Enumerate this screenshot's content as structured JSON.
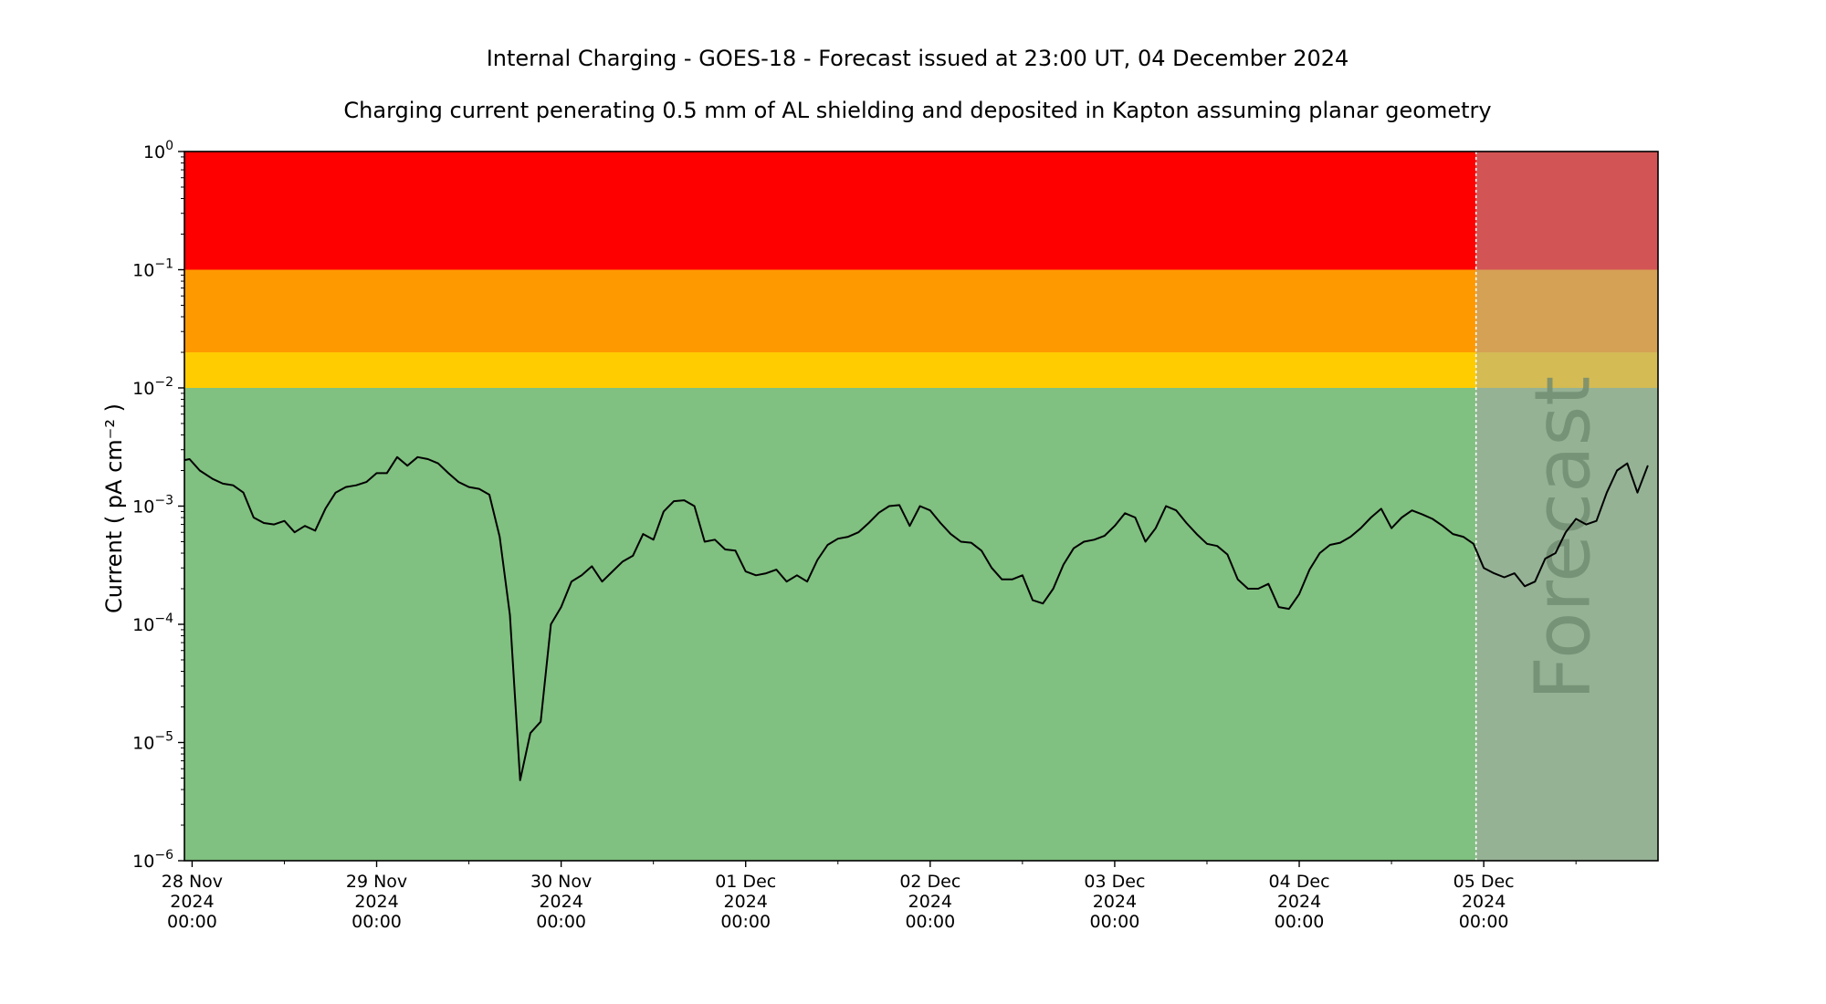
{
  "chart_data": {
    "type": "line",
    "title": "Internal Charging - GOES-18 - Forecast issued at 23:00 UT, 04 December 2024",
    "subtitle": "Charging current penerating 0.5 mm of AL shielding and deposited in Kapton assuming planar geometry",
    "ylabel": "Current ( pA cm⁻² )",
    "xlabel": "",
    "y_scale": "log",
    "ylim": [
      1e-06,
      1
    ],
    "xlim": [
      "2024-11-27T23:00",
      "2024-12-05T22:40"
    ],
    "forecast_start": "2024-12-04T23:00",
    "forecast_label": "Forecast",
    "grid": false,
    "x_ticks": [
      {
        "line1": "28 Nov",
        "line2": "2024",
        "line3": "00:00",
        "value": "2024-11-28T00:00"
      },
      {
        "line1": "29 Nov",
        "line2": "2024",
        "line3": "00:00",
        "value": "2024-11-29T00:00"
      },
      {
        "line1": "30 Nov",
        "line2": "2024",
        "line3": "00:00",
        "value": "2024-11-30T00:00"
      },
      {
        "line1": "01 Dec",
        "line2": "2024",
        "line3": "00:00",
        "value": "2024-12-01T00:00"
      },
      {
        "line1": "02 Dec",
        "line2": "2024",
        "line3": "00:00",
        "value": "2024-12-02T00:00"
      },
      {
        "line1": "03 Dec",
        "line2": "2024",
        "line3": "00:00",
        "value": "2024-12-03T00:00"
      },
      {
        "line1": "04 Dec",
        "line2": "2024",
        "line3": "00:00",
        "value": "2024-12-04T00:00"
      },
      {
        "line1": "05 Dec",
        "line2": "2024",
        "line3": "00:00",
        "value": "2024-12-05T00:00"
      }
    ],
    "y_ticks": [
      {
        "base": "10",
        "exp": "0",
        "value": 1
      },
      {
        "base": "10",
        "exp": "−1",
        "value": 0.1
      },
      {
        "base": "10",
        "exp": "−2",
        "value": 0.01
      },
      {
        "base": "10",
        "exp": "−3",
        "value": 0.001
      },
      {
        "base": "10",
        "exp": "−4",
        "value": 0.0001
      },
      {
        "base": "10",
        "exp": "−5",
        "value": 1e-05
      },
      {
        "base": "10",
        "exp": "−6",
        "value": 1e-06
      }
    ],
    "bands": [
      {
        "from": 0.1,
        "to": 1,
        "color": "#ff0000",
        "forecast_color": "#d35454"
      },
      {
        "from": 0.02,
        "to": 0.1,
        "color": "#ff9900",
        "forecast_color": "#d5a155"
      },
      {
        "from": 0.01,
        "to": 0.02,
        "color": "#ffcc00",
        "forecast_color": "#d4bb54"
      },
      {
        "from": 1e-06,
        "to": 0.01,
        "color": "#80c080",
        "forecast_color": "#95b295"
      }
    ],
    "series": [
      {
        "color": "#000000",
        "points": [
          [
            "2024-11-27T23:00",
            0.00245
          ],
          [
            "2024-11-27T23:40",
            0.0025
          ],
          [
            "2024-11-28T01:00",
            0.002
          ],
          [
            "2024-11-28T02:40",
            0.0017
          ],
          [
            "2024-11-28T04:00",
            0.00155
          ],
          [
            "2024-11-28T05:20",
            0.0015
          ],
          [
            "2024-11-28T06:40",
            0.0013
          ],
          [
            "2024-11-28T08:00",
            0.0008
          ],
          [
            "2024-11-28T09:20",
            0.00072
          ],
          [
            "2024-11-28T10:40",
            0.0007
          ],
          [
            "2024-11-28T12:00",
            0.00075
          ],
          [
            "2024-11-28T13:20",
            0.0006
          ],
          [
            "2024-11-28T14:40",
            0.00068
          ],
          [
            "2024-11-28T16:00",
            0.00062
          ],
          [
            "2024-11-28T17:20",
            0.00095
          ],
          [
            "2024-11-28T18:40",
            0.0013
          ],
          [
            "2024-11-28T20:00",
            0.00145
          ],
          [
            "2024-11-28T21:20",
            0.0015
          ],
          [
            "2024-11-28T22:40",
            0.0016
          ],
          [
            "2024-11-29T00:00",
            0.0019
          ],
          [
            "2024-11-29T01:20",
            0.0019
          ],
          [
            "2024-11-29T02:40",
            0.0026
          ],
          [
            "2024-11-29T04:00",
            0.0022
          ],
          [
            "2024-11-29T05:20",
            0.0026
          ],
          [
            "2024-11-29T06:40",
            0.0025
          ],
          [
            "2024-11-29T08:00",
            0.0023
          ],
          [
            "2024-11-29T09:20",
            0.0019
          ],
          [
            "2024-11-29T10:40",
            0.0016
          ],
          [
            "2024-11-29T12:00",
            0.00145
          ],
          [
            "2024-11-29T13:20",
            0.0014
          ],
          [
            "2024-11-29T14:40",
            0.00125
          ],
          [
            "2024-11-29T16:00",
            0.00055
          ],
          [
            "2024-11-29T17:20",
            0.00012
          ],
          [
            "2024-11-29T18:40",
            4.8e-06
          ],
          [
            "2024-11-29T20:00",
            1.2e-05
          ],
          [
            "2024-11-29T21:20",
            1.5e-05
          ],
          [
            "2024-11-29T22:40",
            0.0001
          ],
          [
            "2024-11-30T00:00",
            0.00014
          ],
          [
            "2024-11-30T01:20",
            0.00023
          ],
          [
            "2024-11-30T02:40",
            0.00026
          ],
          [
            "2024-11-30T04:00",
            0.00031
          ],
          [
            "2024-11-30T05:20",
            0.00023
          ],
          [
            "2024-11-30T06:40",
            0.00028
          ],
          [
            "2024-11-30T08:00",
            0.00034
          ],
          [
            "2024-11-30T09:20",
            0.00038
          ],
          [
            "2024-11-30T10:40",
            0.00058
          ],
          [
            "2024-11-30T12:00",
            0.00052
          ],
          [
            "2024-11-30T13:20",
            0.0009
          ],
          [
            "2024-11-30T14:40",
            0.0011
          ],
          [
            "2024-11-30T16:00",
            0.00112
          ],
          [
            "2024-11-30T17:20",
            0.001
          ],
          [
            "2024-11-30T18:40",
            0.0005
          ],
          [
            "2024-11-30T20:00",
            0.00052
          ],
          [
            "2024-11-30T21:20",
            0.00043
          ],
          [
            "2024-11-30T22:40",
            0.00042
          ],
          [
            "2024-12-01T00:00",
            0.00028
          ],
          [
            "2024-12-01T01:20",
            0.00026
          ],
          [
            "2024-12-01T02:40",
            0.00027
          ],
          [
            "2024-12-01T04:00",
            0.00029
          ],
          [
            "2024-12-01T05:20",
            0.00023
          ],
          [
            "2024-12-01T06:40",
            0.00026
          ],
          [
            "2024-12-01T08:00",
            0.00023
          ],
          [
            "2024-12-01T09:20",
            0.00035
          ],
          [
            "2024-12-01T10:40",
            0.00047
          ],
          [
            "2024-12-01T12:00",
            0.00053
          ],
          [
            "2024-12-01T13:20",
            0.00055
          ],
          [
            "2024-12-01T14:40",
            0.0006
          ],
          [
            "2024-12-01T16:00",
            0.00072
          ],
          [
            "2024-12-01T17:20",
            0.00088
          ],
          [
            "2024-12-01T18:40",
            0.001
          ],
          [
            "2024-12-01T20:00",
            0.00102
          ],
          [
            "2024-12-01T21:20",
            0.00068
          ],
          [
            "2024-12-01T22:40",
            0.001
          ],
          [
            "2024-12-02T00:00",
            0.00092
          ],
          [
            "2024-12-02T01:20",
            0.00072
          ],
          [
            "2024-12-02T02:40",
            0.00058
          ],
          [
            "2024-12-02T04:00",
            0.0005
          ],
          [
            "2024-12-02T05:20",
            0.00049
          ],
          [
            "2024-12-02T06:40",
            0.00042
          ],
          [
            "2024-12-02T08:00",
            0.0003
          ],
          [
            "2024-12-02T09:20",
            0.00024
          ],
          [
            "2024-12-02T10:40",
            0.00024
          ],
          [
            "2024-12-02T12:00",
            0.00026
          ],
          [
            "2024-12-02T13:20",
            0.00016
          ],
          [
            "2024-12-02T14:40",
            0.00015
          ],
          [
            "2024-12-02T16:00",
            0.0002
          ],
          [
            "2024-12-02T17:20",
            0.00032
          ],
          [
            "2024-12-02T18:40",
            0.00044
          ],
          [
            "2024-12-02T20:00",
            0.0005
          ],
          [
            "2024-12-02T21:20",
            0.00052
          ],
          [
            "2024-12-02T22:40",
            0.00056
          ],
          [
            "2024-12-03T00:00",
            0.00068
          ],
          [
            "2024-12-03T01:20",
            0.00087
          ],
          [
            "2024-12-03T02:40",
            0.0008
          ],
          [
            "2024-12-03T04:00",
            0.0005
          ],
          [
            "2024-12-03T05:20",
            0.00065
          ],
          [
            "2024-12-03T06:40",
            0.001
          ],
          [
            "2024-12-03T08:00",
            0.00092
          ],
          [
            "2024-12-03T09:20",
            0.00072
          ],
          [
            "2024-12-03T10:40",
            0.00058
          ],
          [
            "2024-12-03T12:00",
            0.00048
          ],
          [
            "2024-12-03T13:20",
            0.00046
          ],
          [
            "2024-12-03T14:40",
            0.00039
          ],
          [
            "2024-12-03T16:00",
            0.00024
          ],
          [
            "2024-12-03T17:20",
            0.0002
          ],
          [
            "2024-12-03T18:40",
            0.0002
          ],
          [
            "2024-12-03T20:00",
            0.00022
          ],
          [
            "2024-12-03T21:20",
            0.00014
          ],
          [
            "2024-12-03T22:40",
            0.000135
          ],
          [
            "2024-12-04T00:00",
            0.00018
          ],
          [
            "2024-12-04T01:20",
            0.00029
          ],
          [
            "2024-12-04T02:40",
            0.0004
          ],
          [
            "2024-12-04T04:00",
            0.00047
          ],
          [
            "2024-12-04T05:20",
            0.00049
          ],
          [
            "2024-12-04T06:40",
            0.00055
          ],
          [
            "2024-12-04T08:00",
            0.00065
          ],
          [
            "2024-12-04T09:20",
            0.0008
          ],
          [
            "2024-12-04T10:40",
            0.00095
          ],
          [
            "2024-12-04T12:00",
            0.00065
          ],
          [
            "2024-12-04T13:20",
            0.0008
          ],
          [
            "2024-12-04T14:40",
            0.00092
          ],
          [
            "2024-12-04T16:00",
            0.00085
          ],
          [
            "2024-12-04T17:20",
            0.00078
          ],
          [
            "2024-12-04T18:40",
            0.00068
          ],
          [
            "2024-12-04T20:00",
            0.00058
          ],
          [
            "2024-12-04T21:20",
            0.00055
          ],
          [
            "2024-12-04T22:40",
            0.00048
          ],
          [
            "2024-12-05T00:00",
            0.0003
          ],
          [
            "2024-12-05T01:20",
            0.00027
          ],
          [
            "2024-12-05T02:40",
            0.00025
          ],
          [
            "2024-12-05T04:00",
            0.00027
          ],
          [
            "2024-12-05T05:20",
            0.00021
          ],
          [
            "2024-12-05T06:40",
            0.00023
          ],
          [
            "2024-12-05T08:00",
            0.00036
          ],
          [
            "2024-12-05T09:20",
            0.0004
          ],
          [
            "2024-12-05T10:40",
            0.0006
          ],
          [
            "2024-12-05T12:00",
            0.00078
          ],
          [
            "2024-12-05T13:20",
            0.0007
          ],
          [
            "2024-12-05T14:40",
            0.00075
          ],
          [
            "2024-12-05T16:00",
            0.0013
          ],
          [
            "2024-12-05T17:20",
            0.002
          ],
          [
            "2024-12-05T18:40",
            0.0023
          ],
          [
            "2024-12-05T20:00",
            0.0013
          ],
          [
            "2024-12-05T21:20",
            0.0022
          ]
        ]
      }
    ]
  }
}
